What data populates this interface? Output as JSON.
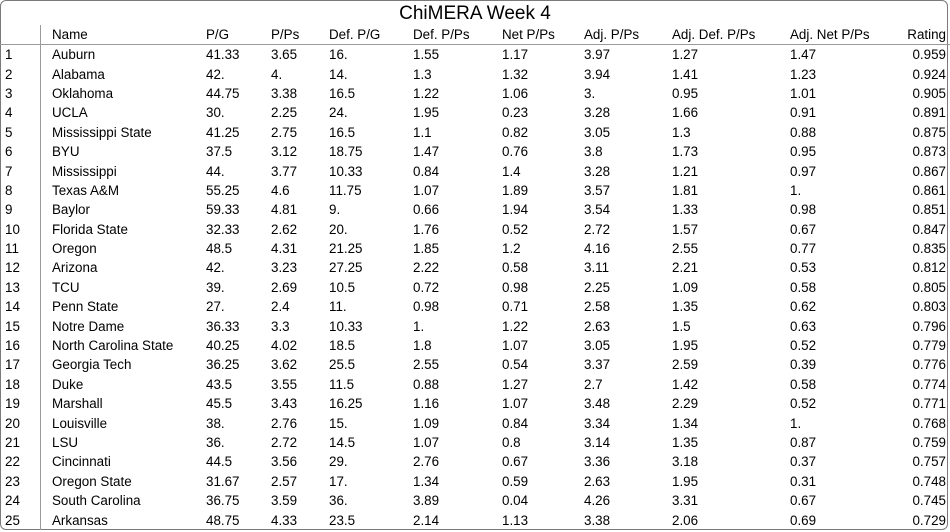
{
  "title": "ChiMERA Week 4",
  "columns": [
    "",
    "Name",
    "P/G",
    "P/Ps",
    "Def. P/G",
    "Def. P/Ps",
    "Net P/Ps",
    "Adj. P/Ps",
    "Adj. Def. P/Ps",
    "Adj. Net P/Ps",
    "Rating"
  ],
  "rows": [
    [
      "1",
      "Auburn",
      "41.33",
      "3.65",
      "16.",
      "1.55",
      "1.17",
      "3.97",
      "1.27",
      "1.47",
      "0.959"
    ],
    [
      "2",
      "Alabama",
      "42.",
      "4.",
      "14.",
      "1.3",
      "1.32",
      "3.94",
      "1.41",
      "1.23",
      "0.924"
    ],
    [
      "3",
      "Oklahoma",
      "44.75",
      "3.38",
      "16.5",
      "1.22",
      "1.06",
      "3.",
      "0.95",
      "1.01",
      "0.905"
    ],
    [
      "4",
      "UCLA",
      "30.",
      "2.25",
      "24.",
      "1.95",
      "0.23",
      "3.28",
      "1.66",
      "0.91",
      "0.891"
    ],
    [
      "5",
      "Mississippi State",
      "41.25",
      "2.75",
      "16.5",
      "1.1",
      "0.82",
      "3.05",
      "1.3",
      "0.88",
      "0.875"
    ],
    [
      "6",
      "BYU",
      "37.5",
      "3.12",
      "18.75",
      "1.47",
      "0.76",
      "3.8",
      "1.73",
      "0.95",
      "0.873"
    ],
    [
      "7",
      "Mississippi",
      "44.",
      "3.77",
      "10.33",
      "0.84",
      "1.4",
      "3.28",
      "1.21",
      "0.97",
      "0.867"
    ],
    [
      "8",
      "Texas A&M",
      "55.25",
      "4.6",
      "11.75",
      "1.07",
      "1.89",
      "3.57",
      "1.81",
      "1.",
      "0.861"
    ],
    [
      "9",
      "Baylor",
      "59.33",
      "4.81",
      "9.",
      "0.66",
      "1.94",
      "3.54",
      "1.33",
      "0.98",
      "0.851"
    ],
    [
      "10",
      "Florida State",
      "32.33",
      "2.62",
      "20.",
      "1.76",
      "0.52",
      "2.72",
      "1.57",
      "0.67",
      "0.847"
    ],
    [
      "11",
      "Oregon",
      "48.5",
      "4.31",
      "21.25",
      "1.85",
      "1.2",
      "4.16",
      "2.55",
      "0.77",
      "0.835"
    ],
    [
      "12",
      "Arizona",
      "42.",
      "3.23",
      "27.25",
      "2.22",
      "0.58",
      "3.11",
      "2.21",
      "0.53",
      "0.812"
    ],
    [
      "13",
      "TCU",
      "39.",
      "2.69",
      "10.5",
      "0.72",
      "0.98",
      "2.25",
      "1.09",
      "0.58",
      "0.805"
    ],
    [
      "14",
      "Penn State",
      "27.",
      "2.4",
      "11.",
      "0.98",
      "0.71",
      "2.58",
      "1.35",
      "0.62",
      "0.803"
    ],
    [
      "15",
      "Notre Dame",
      "36.33",
      "3.3",
      "10.33",
      "1.",
      "1.22",
      "2.63",
      "1.5",
      "0.63",
      "0.796"
    ],
    [
      "16",
      "North Carolina State",
      "40.25",
      "4.02",
      "18.5",
      "1.8",
      "1.07",
      "3.05",
      "1.95",
      "0.52",
      "0.779"
    ],
    [
      "17",
      "Georgia Tech",
      "36.25",
      "3.62",
      "25.5",
      "2.55",
      "0.54",
      "3.37",
      "2.59",
      "0.39",
      "0.776"
    ],
    [
      "18",
      "Duke",
      "43.5",
      "3.55",
      "11.5",
      "0.88",
      "1.27",
      "2.7",
      "1.42",
      "0.58",
      "0.774"
    ],
    [
      "19",
      "Marshall",
      "45.5",
      "3.43",
      "16.25",
      "1.16",
      "1.07",
      "3.48",
      "2.29",
      "0.52",
      "0.771"
    ],
    [
      "20",
      "Louisville",
      "38.",
      "2.76",
      "15.",
      "1.09",
      "0.84",
      "3.34",
      "1.34",
      "1.",
      "0.768"
    ],
    [
      "21",
      "LSU",
      "36.",
      "2.72",
      "14.5",
      "1.07",
      "0.8",
      "3.14",
      "1.35",
      "0.87",
      "0.759"
    ],
    [
      "22",
      "Cincinnati",
      "44.5",
      "3.56",
      "29.",
      "2.76",
      "0.67",
      "3.36",
      "3.18",
      "0.37",
      "0.757"
    ],
    [
      "23",
      "Oregon State",
      "31.67",
      "2.57",
      "17.",
      "1.34",
      "0.59",
      "2.63",
      "1.95",
      "0.31",
      "0.748"
    ],
    [
      "24",
      "South Carolina",
      "36.75",
      "3.59",
      "36.",
      "3.89",
      "0.04",
      "4.26",
      "3.31",
      "0.67",
      "0.745"
    ],
    [
      "25",
      "Arkansas",
      "48.75",
      "4.33",
      "23.5",
      "2.14",
      "1.13",
      "3.38",
      "2.06",
      "0.69",
      "0.729"
    ]
  ]
}
